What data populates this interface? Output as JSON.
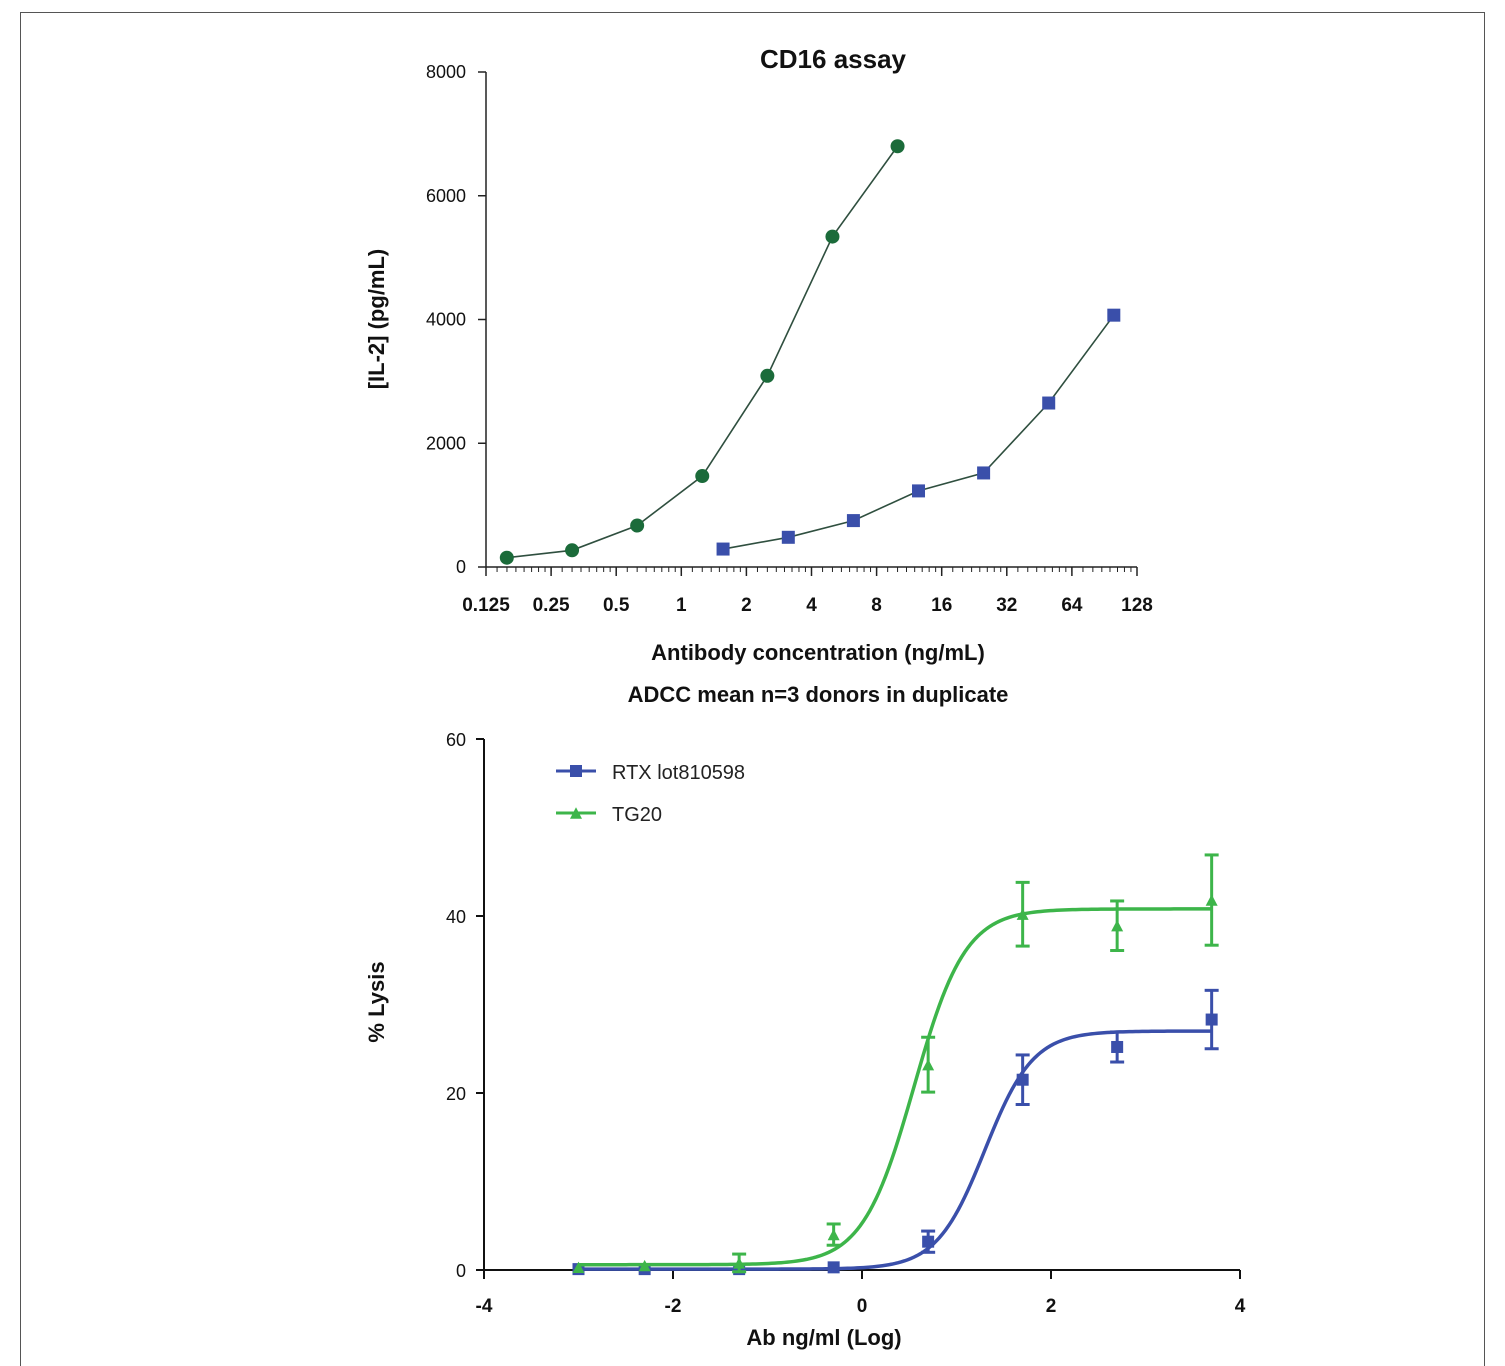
{
  "chart_data": [
    {
      "type": "line",
      "title": "CD16 assay",
      "xlabel": "Antibody concentration (ng/mL)",
      "ylabel": "[IL-2] (pg/mL)",
      "x_scale": "log2",
      "x_ticks": [
        "0.125",
        "0.25",
        "0.5",
        "1",
        "2",
        "4",
        "8",
        "16",
        "32",
        "64",
        "128"
      ],
      "y_ticks": [
        "0",
        "2000",
        "4000",
        "6000",
        "8000"
      ],
      "xlim": [
        0.125,
        128
      ],
      "ylim": [
        0,
        8000
      ],
      "grid": false,
      "series": [
        {
          "color": "#1b6b3a",
          "marker": "circle",
          "x": [
            0.156,
            0.3125,
            0.625,
            1.25,
            2.5,
            5,
            10
          ],
          "y": [
            150,
            270,
            670,
            1470,
            3090,
            5340,
            6800
          ]
        },
        {
          "color": "#3a4faa",
          "marker": "square",
          "x": [
            1.56,
            3.125,
            6.25,
            12.5,
            25,
            50,
            100
          ],
          "y": [
            290,
            480,
            750,
            1230,
            1520,
            2650,
            4070
          ]
        }
      ]
    },
    {
      "type": "line",
      "title": "ADCC mean n=3 donors in duplicate",
      "xlabel": "Ab ng/ml (Log)",
      "ylabel": "% Lysis",
      "x_ticks": [
        "-4",
        "-2",
        "0",
        "2",
        "4"
      ],
      "y_ticks": [
        "0",
        "20",
        "40",
        "60"
      ],
      "xlim": [
        -4,
        4
      ],
      "ylim": [
        0,
        60
      ],
      "grid": false,
      "legend_position": "top-left",
      "series": [
        {
          "name": "RTX lot810598",
          "color": "#3a4faa",
          "marker": "square",
          "x": [
            -3,
            -2.3,
            -1.3,
            -0.3,
            0.7,
            1.7,
            2.7,
            3.7
          ],
          "y": [
            0.1,
            0.1,
            0.1,
            0.3,
            3.2,
            21.5,
            25.2,
            28.3
          ],
          "error": [
            0,
            0,
            0,
            0,
            1.2,
            2.8,
            1.7,
            3.3
          ],
          "fit": {
            "bottom": 0.1,
            "top": 27,
            "ec50_log": 1.3,
            "hill": 1.7
          }
        },
        {
          "name": "TG20",
          "color": "#3db54a",
          "marker": "triangle",
          "x": [
            -3,
            -2.3,
            -1.3,
            -0.3,
            0.7,
            1.7,
            2.7,
            3.7
          ],
          "y": [
            0.3,
            0.5,
            0.8,
            4.0,
            23.2,
            40.2,
            38.9,
            41.8
          ],
          "error": [
            0,
            0,
            1.0,
            1.2,
            3.1,
            3.6,
            2.8,
            5.1
          ],
          "fit": {
            "bottom": 0.6,
            "top": 40.8,
            "ec50_log": 0.55,
            "hill": 1.6
          }
        }
      ]
    }
  ]
}
